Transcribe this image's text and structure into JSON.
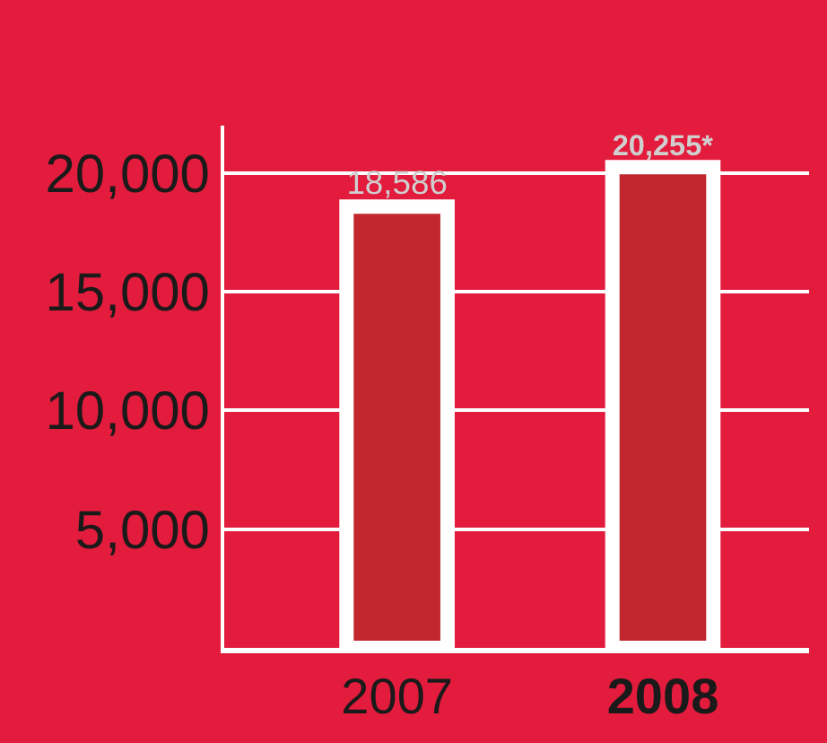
{
  "chart_data": {
    "type": "bar",
    "categories": [
      "2007",
      "2008"
    ],
    "values": [
      18586,
      20255
    ],
    "value_labels": [
      "18,586",
      "20,255*"
    ],
    "color": "#c1272d",
    "ylim": [
      0,
      22000
    ],
    "yticks": [
      {
        "value": 5000,
        "label": "5,000"
      },
      {
        "value": 10000,
        "label": "10,000"
      },
      {
        "value": 15000,
        "label": "15,000"
      },
      {
        "value": 20000,
        "label": "20,000"
      }
    ],
    "grid": "y",
    "legend": false
  }
}
